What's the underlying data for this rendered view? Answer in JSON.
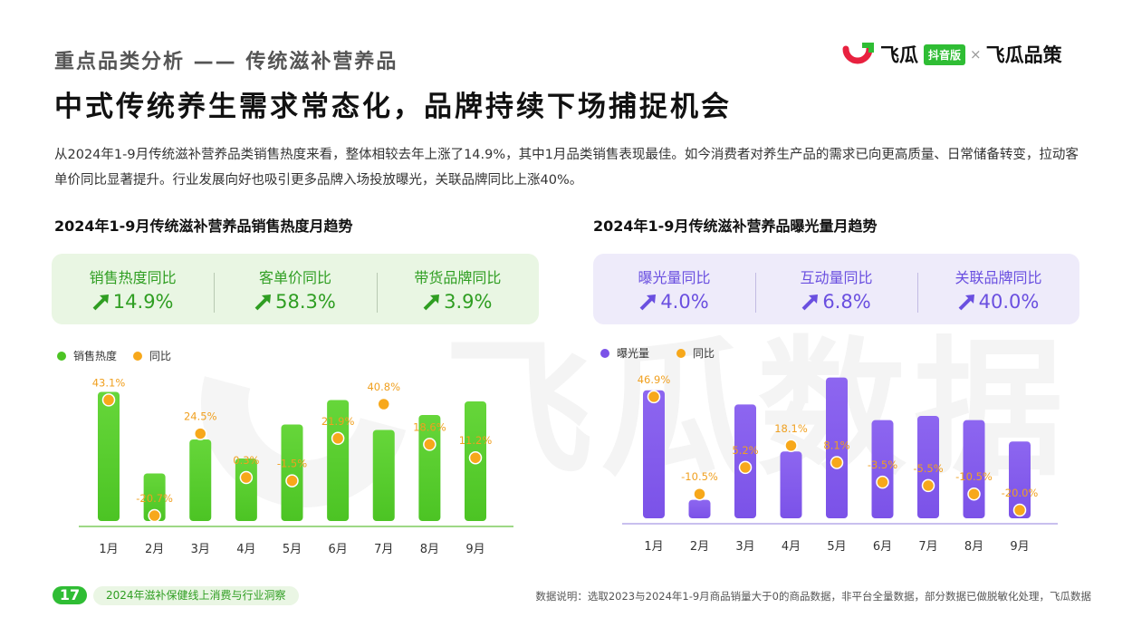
{
  "header": {
    "section_title": "重点品类分析 —— 传统滋补营养品",
    "headline": "中式传统养生需求常态化，品牌持续下场捕捉机会",
    "logo": {
      "name": "飞瓜",
      "badge": "抖音版",
      "separator": "×",
      "name2": "飞瓜品策"
    }
  },
  "intro": "从2024年1-9月传统滋补营养品类销售热度来看，整体相较去年上涨了14.9%，其中1月品类销售表现最佳。如今消费者对养生产品的需求已向更高质量、日常储备转变，拉动客单价同比显著提升。行业发展向好也吸引更多品牌入场投放曝光，关联品牌同比上涨40%。",
  "watermark": "飞瓜数据",
  "left_panel": {
    "title": "2024年1-9月传统滋补营养品销售热度月趋势",
    "kpis": [
      {
        "label": "销售热度同比",
        "value": "14.9%"
      },
      {
        "label": "客单价同比",
        "value": "58.3%"
      },
      {
        "label": "带货品牌同比",
        "value": "3.9%"
      }
    ]
  },
  "right_panel": {
    "title": "2024年1-9月传统滋补营养品曝光量月趋势",
    "kpis": [
      {
        "label": "曝光量同比",
        "value": "4.0%"
      },
      {
        "label": "互动量同比",
        "value": "6.8%"
      },
      {
        "label": "关联品牌同比",
        "value": "40.0%"
      }
    ]
  },
  "colors": {
    "green": "#4cc424",
    "green_dark": "#2f9e22",
    "purple": "#7b52e8",
    "purple_dark": "#6a4fe0",
    "orange": "#f7a81b",
    "orange_text": "#f0a020"
  },
  "chart_data": [
    {
      "type": "bar",
      "categories": [
        "1月",
        "2月",
        "3月",
        "4月",
        "5月",
        "6月",
        "7月",
        "8月",
        "9月"
      ],
      "series": [
        {
          "name": "销售热度",
          "values": [
            95,
            35,
            60,
            46,
            71,
            89,
            67,
            78,
            88
          ]
        },
        {
          "name": "同比",
          "values": [
            43.1,
            -20.7,
            24.5,
            0.3,
            -1.5,
            21.9,
            40.8,
            18.6,
            11.2
          ],
          "labels": [
            "43.1%",
            "-20.7%",
            "24.5%",
            "0.3%",
            "-1.5%",
            "21.9%",
            "40.8%",
            "18.6%",
            "11.2%"
          ]
        }
      ],
      "legend": "top-left"
    },
    {
      "type": "bar",
      "categories": [
        "1月",
        "2月",
        "3月",
        "4月",
        "5月",
        "6月",
        "7月",
        "8月",
        "9月"
      ],
      "series": [
        {
          "name": "曝光量",
          "values": [
            90,
            13,
            80,
            47,
            99,
            69,
            72,
            69,
            54
          ]
        },
        {
          "name": "同比",
          "values": [
            46.9,
            -10.5,
            5.2,
            18.1,
            8.1,
            -3.5,
            -5.5,
            -10.5,
            -20.0
          ],
          "labels": [
            "46.9%",
            "-10.5%",
            "5.2%",
            "18.1%",
            "8.1%",
            "-3.5%",
            "-5.5%",
            "-10.5%",
            "-20.0%"
          ]
        }
      ],
      "legend": "top-left"
    }
  ],
  "footer": {
    "page": "17",
    "report": "2024年滋补保健线上消费与行业洞察",
    "note": "数据说明：选取2023与2024年1-9月商品销量大于0的商品数据，非平台全量数据，部分数据已做脱敏化处理，飞瓜数据"
  }
}
